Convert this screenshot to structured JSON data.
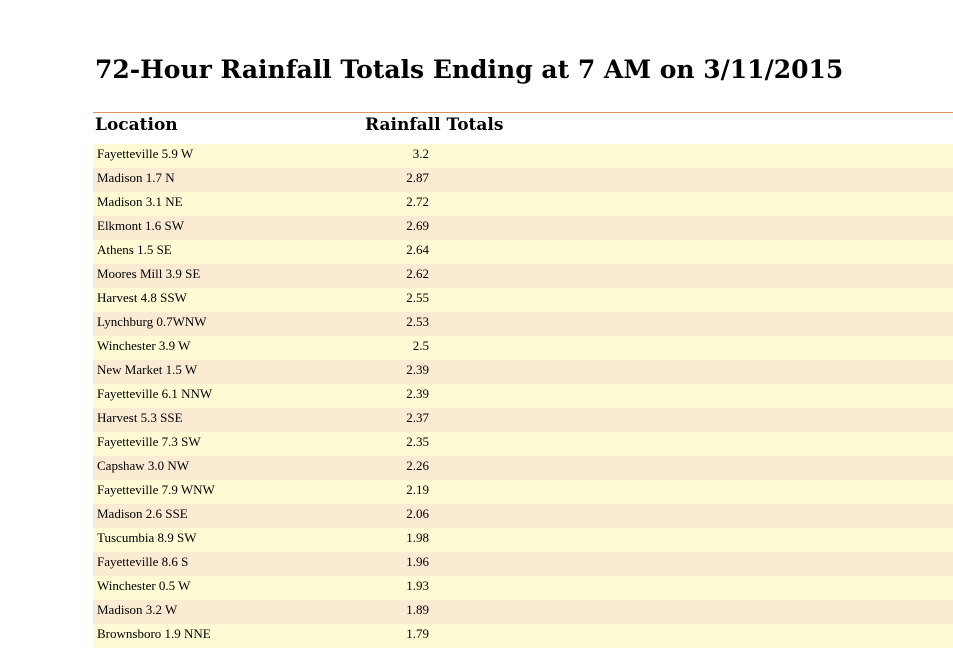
{
  "title": "72-Hour Rainfall Totals Ending at 7 AM on 3/11/2015",
  "colors": {
    "rule": "#e0915b",
    "row_odd": "#fefbd5",
    "row_even": "#fcebd3"
  },
  "table": {
    "headers": {
      "location": "Location",
      "rainfall": "Rainfall Totals"
    },
    "rows": [
      {
        "location": "Fayetteville 5.9 W",
        "total": "3.2"
      },
      {
        "location": "Madison 1.7 N",
        "total": "2.87"
      },
      {
        "location": "Madison 3.1 NE",
        "total": "2.72"
      },
      {
        "location": "Elkmont 1.6 SW",
        "total": "2.69"
      },
      {
        "location": "Athens 1.5 SE",
        "total": "2.64"
      },
      {
        "location": "Moores Mill 3.9 SE",
        "total": "2.62"
      },
      {
        "location": "Harvest 4.8 SSW",
        "total": "2.55"
      },
      {
        "location": "Lynchburg 0.7WNW",
        "total": "2.53"
      },
      {
        "location": "Winchester 3.9 W",
        "total": "2.5"
      },
      {
        "location": "New Market 1.5 W",
        "total": "2.39"
      },
      {
        "location": "Fayetteville 6.1 NNW",
        "total": "2.39"
      },
      {
        "location": "Harvest 5.3 SSE",
        "total": "2.37"
      },
      {
        "location": "Fayetteville 7.3 SW",
        "total": "2.35"
      },
      {
        "location": "Capshaw 3.0 NW",
        "total": "2.26"
      },
      {
        "location": "Fayetteville 7.9 WNW",
        "total": "2.19"
      },
      {
        "location": "Madison 2.6 SSE",
        "total": "2.06"
      },
      {
        "location": "Tuscumbia 8.9 SW",
        "total": "1.98"
      },
      {
        "location": "Fayetteville 8.6 S",
        "total": "1.96"
      },
      {
        "location": "Winchester 0.5 W",
        "total": "1.93"
      },
      {
        "location": "Madison 3.2 W",
        "total": "1.89"
      },
      {
        "location": "Brownsboro 1.9 NNE",
        "total": "1.79"
      }
    ]
  }
}
